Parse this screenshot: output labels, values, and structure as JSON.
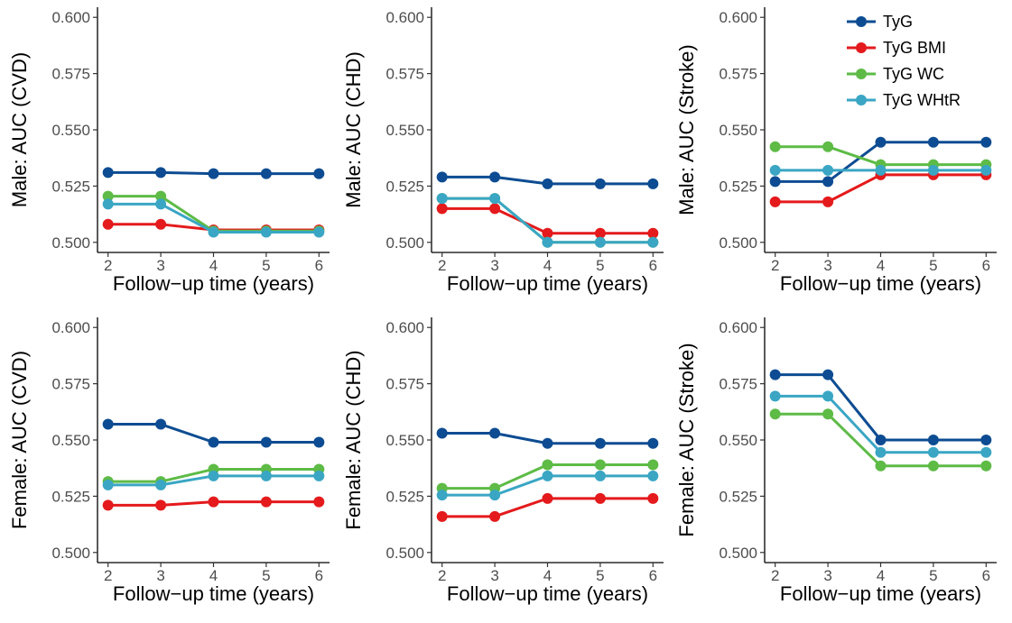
{
  "legend": {
    "placement": "top-right",
    "entries": [
      {
        "label": "TyG",
        "color": "#0D4C92"
      },
      {
        "label": "TyG BMI",
        "color": "#E41A1C"
      },
      {
        "label": "TyG WC",
        "color": "#5DBB46"
      },
      {
        "label": "TyG WHtR",
        "color": "#3AA6C4"
      }
    ]
  },
  "chart_data": [
    {
      "type": "line",
      "panel": "male-cvd",
      "xlabel": "Follow−up time (years)",
      "ylabel": "Male: AUC (CVD)",
      "x": [
        2,
        3,
        4,
        5,
        6
      ],
      "xticks": [
        "2",
        "3",
        "4",
        "5",
        "6"
      ],
      "ylim": [
        0.5,
        0.6
      ],
      "yticks": [
        "0.500",
        "0.525",
        "0.550",
        "0.575",
        "0.600"
      ],
      "grid": false,
      "series": [
        {
          "name": "TyG",
          "color": "#0D4C92",
          "values": [
            0.531,
            0.531,
            0.5305,
            0.5305,
            0.5305
          ]
        },
        {
          "name": "TyG BMI",
          "color": "#E41A1C",
          "values": [
            0.508,
            0.508,
            0.5055,
            0.5055,
            0.5055
          ]
        },
        {
          "name": "TyG WC",
          "color": "#5DBB46",
          "values": [
            0.5205,
            0.5205,
            0.505,
            0.505,
            0.505
          ]
        },
        {
          "name": "TyG WHtR",
          "color": "#3AA6C4",
          "values": [
            0.517,
            0.517,
            0.5045,
            0.5045,
            0.5045
          ]
        }
      ]
    },
    {
      "type": "line",
      "panel": "male-chd",
      "xlabel": "Follow−up time (years)",
      "ylabel": "Male: AUC (CHD)",
      "x": [
        2,
        3,
        4,
        5,
        6
      ],
      "xticks": [
        "2",
        "3",
        "4",
        "5",
        "6"
      ],
      "ylim": [
        0.5,
        0.6
      ],
      "yticks": [
        "0.500",
        "0.525",
        "0.550",
        "0.575",
        "0.600"
      ],
      "grid": false,
      "series": [
        {
          "name": "TyG",
          "color": "#0D4C92",
          "values": [
            0.529,
            0.529,
            0.526,
            0.526,
            0.526
          ]
        },
        {
          "name": "TyG BMI",
          "color": "#E41A1C",
          "values": [
            0.515,
            0.515,
            0.504,
            0.504,
            0.504
          ]
        },
        {
          "name": "TyG WC",
          "color": "#5DBB46",
          "values": [
            0.5195,
            0.5195,
            0.5,
            0.5,
            0.5
          ]
        },
        {
          "name": "TyG WHtR",
          "color": "#3AA6C4",
          "values": [
            0.5195,
            0.5195,
            0.5,
            0.5,
            0.5
          ]
        }
      ]
    },
    {
      "type": "line",
      "panel": "male-stroke",
      "xlabel": "Follow−up time (years)",
      "ylabel": "Male: AUC (Stroke)",
      "x": [
        2,
        3,
        4,
        5,
        6
      ],
      "xticks": [
        "2",
        "3",
        "4",
        "5",
        "6"
      ],
      "ylim": [
        0.5,
        0.6
      ],
      "yticks": [
        "0.500",
        "0.525",
        "0.550",
        "0.575",
        "0.600"
      ],
      "grid": false,
      "series": [
        {
          "name": "TyG",
          "color": "#0D4C92",
          "values": [
            0.527,
            0.527,
            0.5445,
            0.5445,
            0.5445
          ]
        },
        {
          "name": "TyG BMI",
          "color": "#E41A1C",
          "values": [
            0.518,
            0.518,
            0.53,
            0.53,
            0.53
          ]
        },
        {
          "name": "TyG WC",
          "color": "#5DBB46",
          "values": [
            0.5425,
            0.5425,
            0.5345,
            0.5345,
            0.5345
          ]
        },
        {
          "name": "TyG WHtR",
          "color": "#3AA6C4",
          "values": [
            0.532,
            0.532,
            0.532,
            0.532,
            0.532
          ]
        }
      ]
    },
    {
      "type": "line",
      "panel": "female-cvd",
      "xlabel": "Follow−up time (years)",
      "ylabel": "Female: AUC (CVD)",
      "x": [
        2,
        3,
        4,
        5,
        6
      ],
      "xticks": [
        "2",
        "3",
        "4",
        "5",
        "6"
      ],
      "ylim": [
        0.5,
        0.6
      ],
      "yticks": [
        "0.500",
        "0.525",
        "0.550",
        "0.575",
        "0.600"
      ],
      "grid": false,
      "series": [
        {
          "name": "TyG",
          "color": "#0D4C92",
          "values": [
            0.557,
            0.557,
            0.549,
            0.549,
            0.549
          ]
        },
        {
          "name": "TyG BMI",
          "color": "#E41A1C",
          "values": [
            0.521,
            0.521,
            0.5225,
            0.5225,
            0.5225
          ]
        },
        {
          "name": "TyG WC",
          "color": "#5DBB46",
          "values": [
            0.5315,
            0.5315,
            0.537,
            0.537,
            0.537
          ]
        },
        {
          "name": "TyG WHtR",
          "color": "#3AA6C4",
          "values": [
            0.53,
            0.53,
            0.534,
            0.534,
            0.534
          ]
        }
      ]
    },
    {
      "type": "line",
      "panel": "female-chd",
      "xlabel": "Follow−up time (years)",
      "ylabel": "Female: AUC (CHD)",
      "x": [
        2,
        3,
        4,
        5,
        6
      ],
      "xticks": [
        "2",
        "3",
        "4",
        "5",
        "6"
      ],
      "ylim": [
        0.5,
        0.6
      ],
      "yticks": [
        "0.500",
        "0.525",
        "0.550",
        "0.575",
        "0.600"
      ],
      "grid": false,
      "series": [
        {
          "name": "TyG",
          "color": "#0D4C92",
          "values": [
            0.553,
            0.553,
            0.5485,
            0.5485,
            0.5485
          ]
        },
        {
          "name": "TyG BMI",
          "color": "#E41A1C",
          "values": [
            0.516,
            0.516,
            0.524,
            0.524,
            0.524
          ]
        },
        {
          "name": "TyG WC",
          "color": "#5DBB46",
          "values": [
            0.5285,
            0.5285,
            0.539,
            0.539,
            0.539
          ]
        },
        {
          "name": "TyG WHtR",
          "color": "#3AA6C4",
          "values": [
            0.5255,
            0.5255,
            0.534,
            0.534,
            0.534
          ]
        }
      ]
    },
    {
      "type": "line",
      "panel": "female-stroke",
      "xlabel": "Follow−up time (years)",
      "ylabel": "Female: AUC (Stroke)",
      "x": [
        2,
        3,
        4,
        5,
        6
      ],
      "xticks": [
        "2",
        "3",
        "4",
        "5",
        "6"
      ],
      "ylim": [
        0.5,
        0.6
      ],
      "yticks": [
        "0.500",
        "0.525",
        "0.550",
        "0.575",
        "0.600"
      ],
      "grid": false,
      "series": [
        {
          "name": "TyG",
          "color": "#0D4C92",
          "values": [
            0.579,
            0.579,
            0.55,
            0.55,
            0.55
          ]
        },
        {
          "name": "TyG WC",
          "color": "#5DBB46",
          "values": [
            0.5615,
            0.5615,
            0.5385,
            0.5385,
            0.5385
          ]
        },
        {
          "name": "TyG WHtR",
          "color": "#3AA6C4",
          "values": [
            0.5695,
            0.5695,
            0.5445,
            0.5445,
            0.5445
          ]
        }
      ]
    }
  ]
}
